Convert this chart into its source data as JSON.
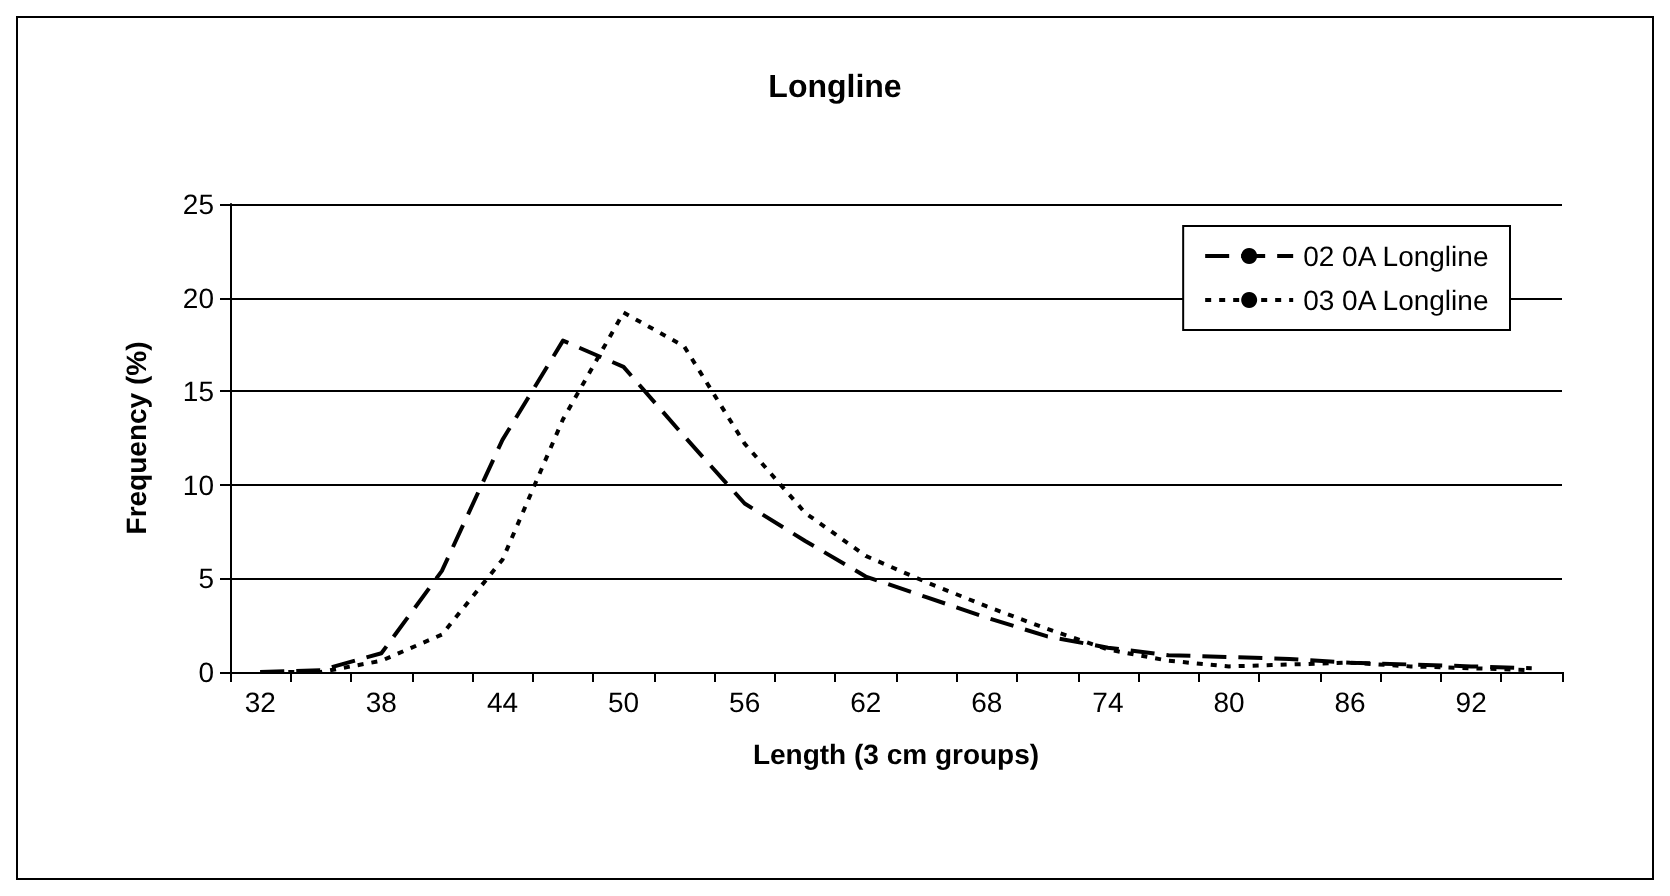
{
  "chart_data": {
    "type": "line",
    "title": "Longline",
    "xlabel": "Length (3 cm groups)",
    "ylabel": "Frequency (%)",
    "categories": [
      "32",
      null,
      "38",
      null,
      "44",
      null,
      "50",
      null,
      "56",
      null,
      "62",
      null,
      "68",
      null,
      "74",
      null,
      "80",
      null,
      "86",
      null,
      "92",
      null
    ],
    "series": [
      {
        "name": "02 0A Longline",
        "color": "#000000",
        "line_style": "dashed",
        "values": [
          0,
          0.1,
          1.0,
          5.4,
          12.4,
          17.7,
          16.3,
          12.6,
          9.0,
          7.0,
          5.1,
          4.0,
          2.9,
          1.9,
          1.3,
          0.9,
          0.8,
          0.7,
          0.5,
          0.4,
          0.3,
          0.2
        ]
      },
      {
        "name": "03 0A Longline",
        "color": "#000000",
        "line_style": "dotted",
        "values": [
          0,
          0,
          0.6,
          2.0,
          6.0,
          13.5,
          19.2,
          17.4,
          12.2,
          8.5,
          6.2,
          4.8,
          3.5,
          2.3,
          1.2,
          0.6,
          0.3,
          0.4,
          0.5,
          0.3,
          0.2,
          0.1
        ]
      }
    ],
    "ylim": [
      0,
      25
    ],
    "yticks": [
      0,
      5,
      10,
      15,
      20,
      25
    ],
    "grid": "y",
    "legend": "top right",
    "marker": "none"
  }
}
